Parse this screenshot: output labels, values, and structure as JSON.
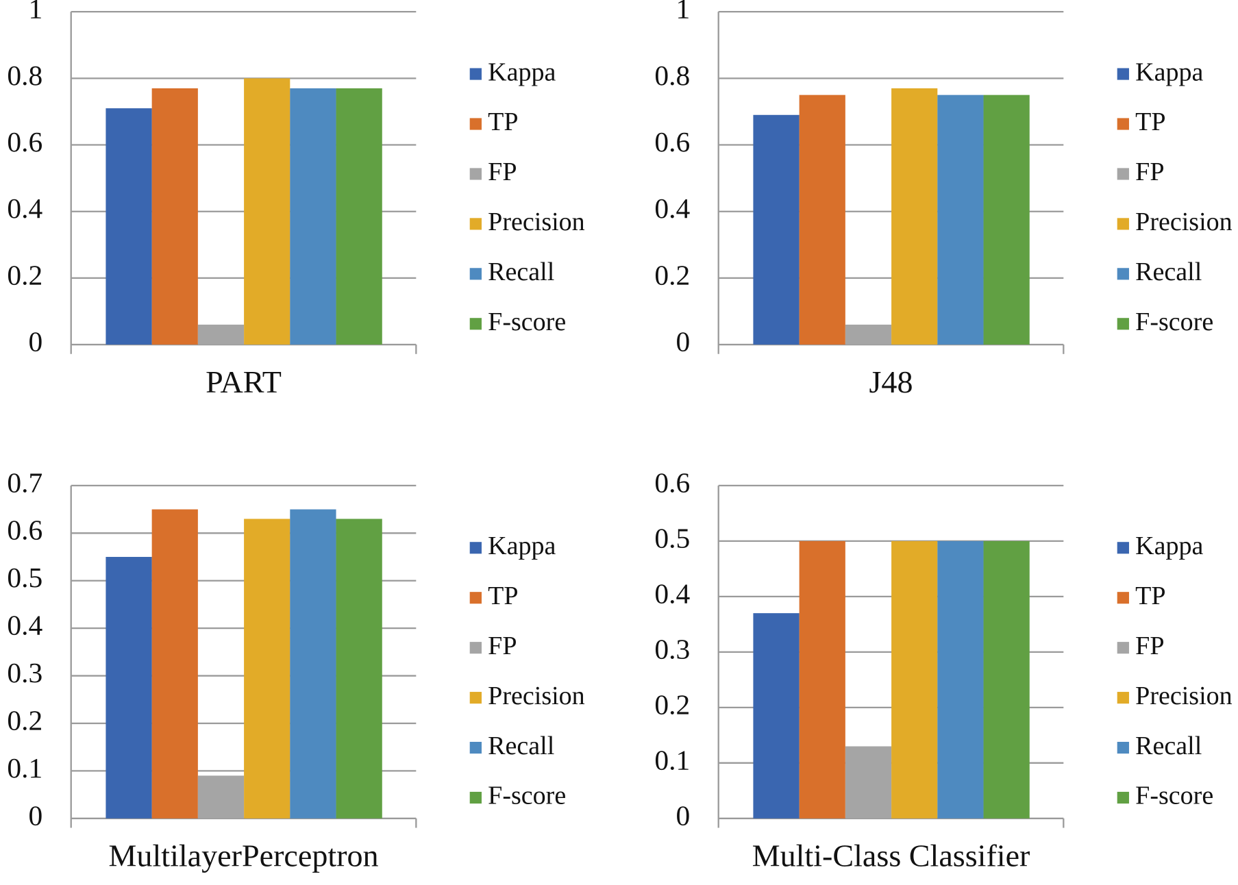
{
  "chart_data": [
    {
      "type": "bar",
      "categories": [
        "PART"
      ],
      "ylim": [
        0,
        1
      ],
      "yticks": [
        0,
        0.2,
        0.4,
        0.6,
        0.8,
        1
      ],
      "grid": true,
      "series": [
        {
          "name": "Kappa",
          "color": "#3a66b0",
          "values": [
            0.71
          ]
        },
        {
          "name": "TP",
          "color": "#d9702b",
          "values": [
            0.77
          ]
        },
        {
          "name": "FP",
          "color": "#a5a5a5",
          "values": [
            0.06
          ]
        },
        {
          "name": "Precision",
          "color": "#e2ab28",
          "values": [
            0.8
          ]
        },
        {
          "name": "Recall",
          "color": "#4e8ac0",
          "values": [
            0.77
          ]
        },
        {
          "name": "F-score",
          "color": "#61a043",
          "values": [
            0.77
          ]
        }
      ]
    },
    {
      "type": "bar",
      "categories": [
        "J48"
      ],
      "ylim": [
        0,
        1
      ],
      "yticks": [
        0,
        0.2,
        0.4,
        0.6,
        0.8,
        1
      ],
      "grid": true,
      "series": [
        {
          "name": "Kappa",
          "color": "#3a66b0",
          "values": [
            0.69
          ]
        },
        {
          "name": "TP",
          "color": "#d9702b",
          "values": [
            0.75
          ]
        },
        {
          "name": "FP",
          "color": "#a5a5a5",
          "values": [
            0.06
          ]
        },
        {
          "name": "Precision",
          "color": "#e2ab28",
          "values": [
            0.77
          ]
        },
        {
          "name": "Recall",
          "color": "#4e8ac0",
          "values": [
            0.75
          ]
        },
        {
          "name": "F-score",
          "color": "#61a043",
          "values": [
            0.75
          ]
        }
      ]
    },
    {
      "type": "bar",
      "categories": [
        "MultilayerPerceptron"
      ],
      "ylim": [
        0,
        0.7
      ],
      "yticks": [
        0,
        0.1,
        0.2,
        0.3,
        0.4,
        0.5,
        0.6,
        0.7
      ],
      "grid": true,
      "series": [
        {
          "name": "Kappa",
          "color": "#3a66b0",
          "values": [
            0.55
          ]
        },
        {
          "name": "TP",
          "color": "#d9702b",
          "values": [
            0.65
          ]
        },
        {
          "name": "FP",
          "color": "#a5a5a5",
          "values": [
            0.09
          ]
        },
        {
          "name": "Precision",
          "color": "#e2ab28",
          "values": [
            0.63
          ]
        },
        {
          "name": "Recall",
          "color": "#4e8ac0",
          "values": [
            0.65
          ]
        },
        {
          "name": "F-score",
          "color": "#61a043",
          "values": [
            0.63
          ]
        }
      ]
    },
    {
      "type": "bar",
      "categories": [
        "Multi-Class Classifier"
      ],
      "ylim": [
        0,
        0.6
      ],
      "yticks": [
        0,
        0.1,
        0.2,
        0.3,
        0.4,
        0.5,
        0.6
      ],
      "grid": true,
      "series": [
        {
          "name": "Kappa",
          "color": "#3a66b0",
          "values": [
            0.37
          ]
        },
        {
          "name": "TP",
          "color": "#d9702b",
          "values": [
            0.5
          ]
        },
        {
          "name": "FP",
          "color": "#a5a5a5",
          "values": [
            0.13
          ]
        },
        {
          "name": "Precision",
          "color": "#e2ab28",
          "values": [
            0.5
          ]
        },
        {
          "name": "Recall",
          "color": "#4e8ac0",
          "values": [
            0.5
          ]
        },
        {
          "name": "F-score",
          "color": "#61a043",
          "values": [
            0.5
          ]
        }
      ]
    }
  ]
}
